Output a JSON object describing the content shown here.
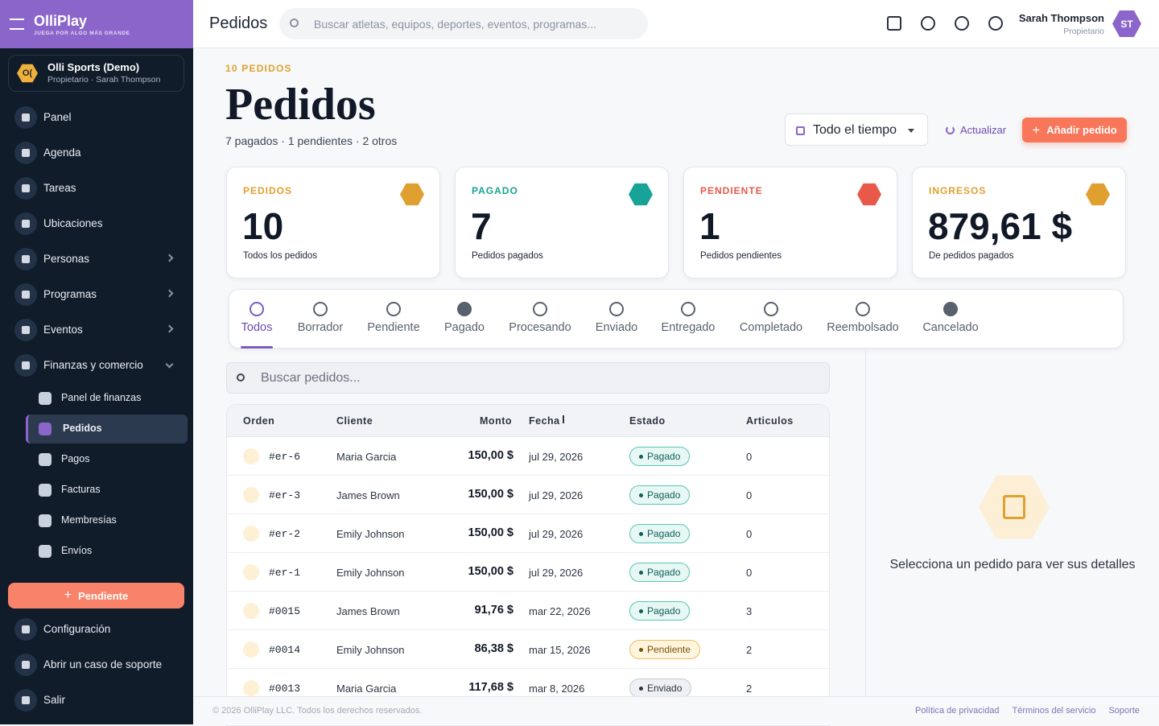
{
  "brand": {
    "name": "OlliPlay",
    "tagline": "JUEGA POR ALGO MÁS GRANDE"
  },
  "org": {
    "badge": "O(",
    "name": "Olli Sports (Demo)",
    "subtitle": "Propietario · Sarah Thompson"
  },
  "nav": {
    "main": [
      "Panel",
      "Agenda",
      "Tareas",
      "Ubicaciones",
      "Personas",
      "Programas",
      "Eventos",
      "Finanzas y comercio"
    ],
    "sub": [
      "Panel de finanzas",
      "Pedidos",
      "Pagos",
      "Facturas",
      "Membresías",
      "Envíos"
    ],
    "action": "Pendiente",
    "bottom": [
      "Configuración",
      "Abrir un caso de soporte",
      "Salir"
    ]
  },
  "header": {
    "title": "Pedidos",
    "search_placeholder": "Buscar atletas, equipos, deportes, eventos, programas...",
    "user_name": "Sarah Thompson",
    "user_role": "Propietario",
    "user_initials": "ST"
  },
  "page": {
    "eyebrow": "10 PEDIDOS",
    "title": "Pedidos",
    "summary": "7 pagados · 1 pendientes · 2 otros",
    "range": "Todo el tiempo",
    "refresh": "Actualizar",
    "add": "Añadir pedido"
  },
  "stats": [
    {
      "label": "PEDIDOS",
      "value": 10,
      "caption": "Todos los pedidos"
    },
    {
      "label": "PAGADO",
      "value": 7,
      "caption": "Pedidos pagados"
    },
    {
      "label": "PENDIENTE",
      "value": 1,
      "caption": "Pedidos pendientes"
    },
    {
      "label": "INGRESOS",
      "value": "879,61 $",
      "caption": "De pedidos pagados"
    }
  ],
  "tabs": [
    "Todos",
    "Borrador",
    "Pendiente",
    "Pagado",
    "Procesando",
    "Enviado",
    "Entregado",
    "Completado",
    "Reembolsado",
    "Cancelado"
  ],
  "order_search": "Buscar pedidos...",
  "table": {
    "columns": [
      "Orden",
      "Cliente",
      "Monto",
      "Fecha",
      "Estado",
      "Articulos"
    ],
    "rows": [
      [
        "#er-6",
        "Maria Garcia",
        "150,00 $",
        "jul 29, 2026",
        "Pagado",
        0
      ],
      [
        "#er-3",
        "James Brown",
        "150,00 $",
        "jul 29, 2026",
        "Pagado",
        0
      ],
      [
        "#er-2",
        "Emily Johnson",
        "150,00 $",
        "jul 29, 2026",
        "Pagado",
        0
      ],
      [
        "#er-1",
        "Emily Johnson",
        "150,00 $",
        "jul 29, 2026",
        "Pagado",
        0
      ],
      [
        "#0015",
        "James Brown",
        "91,76 $",
        "mar 22, 2026",
        "Pagado",
        3
      ],
      [
        "#0014",
        "Emily Johnson",
        "86,38 $",
        "mar 15, 2026",
        "Pendiente",
        2
      ],
      [
        "#0013",
        "Maria Garcia",
        "117,68 $",
        "mar 8, 2026",
        "Enviado",
        2
      ]
    ]
  },
  "detail_empty": "Selecciona un pedido para ver sus detalles",
  "footer": {
    "copyright": "© 2026 OlliPlay LLC. Todos los derechos reservados.",
    "links": [
      "Política de privacidad",
      "Términos del servicio",
      "Soporte"
    ]
  }
}
